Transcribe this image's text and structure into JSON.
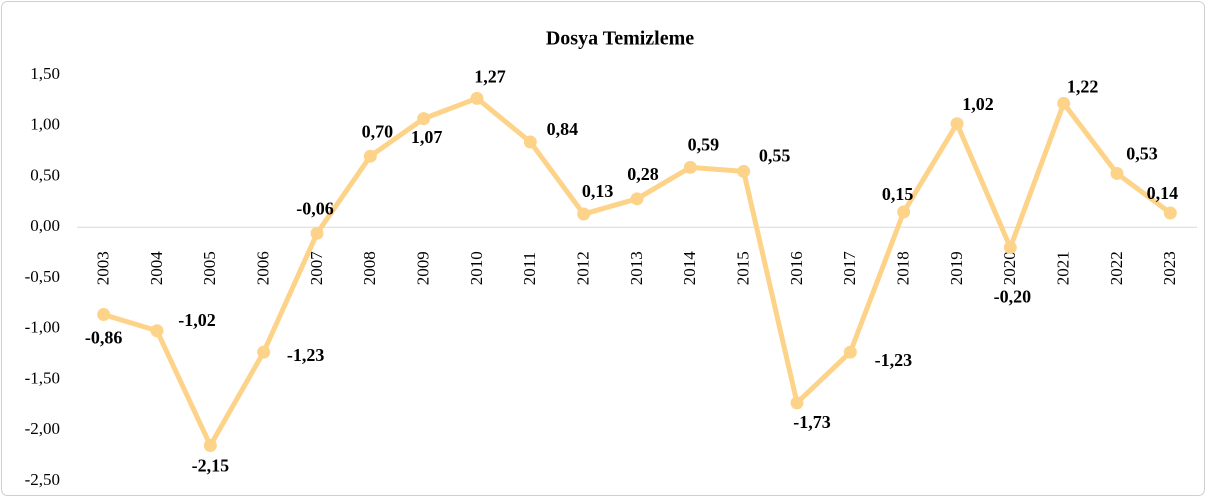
{
  "chart_data": {
    "type": "line",
    "title": "Dosya Temizleme",
    "categories": [
      "2003",
      "2004",
      "2005",
      "2006",
      "2007",
      "2008",
      "2009",
      "2010",
      "2011",
      "2012",
      "2013",
      "2014",
      "2015",
      "2016",
      "2017",
      "2018",
      "2019",
      "2020",
      "2021",
      "2022",
      "2023"
    ],
    "values": [
      -0.86,
      -1.02,
      -2.15,
      -1.23,
      -0.06,
      0.7,
      1.07,
      1.27,
      0.84,
      0.13,
      0.28,
      0.59,
      0.55,
      -1.73,
      -1.23,
      0.15,
      1.02,
      -0.2,
      1.22,
      0.53,
      0.14
    ],
    "value_labels": [
      "-0,86",
      "-1,02",
      "-2,15",
      "-1,23",
      "-0,06",
      "0,70",
      "1,07",
      "1,27",
      "0,84",
      "0,13",
      "0,28",
      "0,59",
      "0,55",
      "-1,73",
      "-1,23",
      "0,15",
      "1,02",
      "-0,20",
      "1,22",
      "0,53",
      "0,14"
    ],
    "color": "#fdd38a",
    "ylim": [
      -2.5,
      1.5
    ],
    "yticks": [
      {
        "value": 1.5,
        "label": "1,50"
      },
      {
        "value": 1,
        "label": "1,00"
      },
      {
        "value": 0.5,
        "label": "0,50"
      },
      {
        "value": 0,
        "label": "0,00"
      },
      {
        "value": -0.5,
        "label": "-0,50"
      },
      {
        "value": -1,
        "label": "-1,00"
      },
      {
        "value": -1.5,
        "label": "-1,50"
      },
      {
        "value": -2,
        "label": "-2,00"
      },
      {
        "value": -2.5,
        "label": "-2,50"
      }
    ]
  }
}
